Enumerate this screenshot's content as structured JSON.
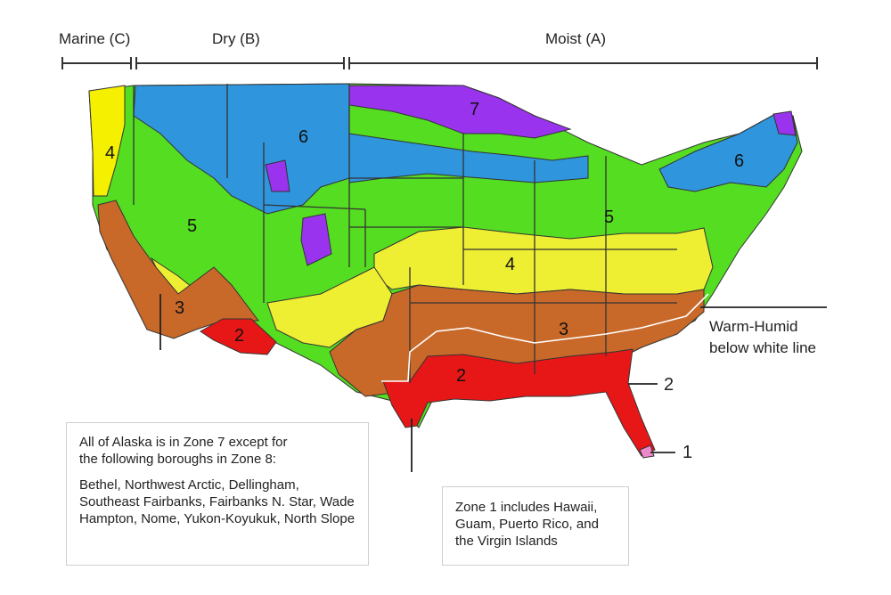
{
  "headers": {
    "marine": "Marine (C)",
    "dry": "Dry (B)",
    "moist": "Moist (A)"
  },
  "zone_labels": {
    "z7": "7",
    "z6_west": "6",
    "z6_east": "6",
    "z5_west": "5",
    "z5_east": "5",
    "z4_west": "4",
    "z4_east": "4",
    "z3_west": "3",
    "z3_east": "3",
    "z2_west": "2",
    "z2_east": "2",
    "z2_florida": "2",
    "z1": "1"
  },
  "warm_humid": {
    "line1": "Warm-Humid",
    "line2": "below white line"
  },
  "alaska_note": {
    "line1": "All of Alaska is in Zone 7 except for",
    "line2": "the following boroughs in Zone 8:",
    "boroughs": "Bethel, Northwest Arctic, Dellingham, Southeast Fairbanks, Fairbanks N. Star, Wade Hampton, Nome, Yukon-Koyukuk, North Slope"
  },
  "zone1_note": "Zone 1 includes Hawaii, Guam, Puerto Rico, and the Virgin Islands",
  "colors": {
    "zone1": "#ee88cc",
    "zone2": "#e81717",
    "zone3": "#c8692a",
    "zone4": "#eeee33",
    "zone5": "#55dd22",
    "zone6": "#2f95dc",
    "zone7": "#9933ee",
    "marine4": "#f4f000",
    "borders": "#333333"
  }
}
